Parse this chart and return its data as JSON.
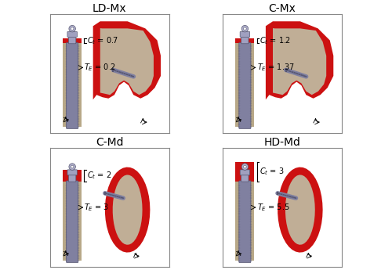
{
  "fig_width": 5.0,
  "fig_height": 3.45,
  "dpi": 100,
  "background": "#ffffff",
  "red_color": "#CC1111",
  "tan_color": "#C0AE96",
  "implant_dark": "#8080A0",
  "implant_light": "#A0A0C0",
  "implant_edge": "#555570",
  "bone_tan": "#B8A888",
  "title_fontsize": 10,
  "annot_fontsize": 7.0,
  "panels": [
    {
      "row": 0,
      "col": 0,
      "title": "LD-Mx",
      "ct": "0.7",
      "te": "0.2",
      "type": "maxilla"
    },
    {
      "row": 0,
      "col": 1,
      "title": "C-Mx",
      "ct": "1.2",
      "te": "1.37",
      "type": "maxilla"
    },
    {
      "row": 1,
      "col": 0,
      "title": "C-Md",
      "ct": "2",
      "te": "3",
      "type": "mandible"
    },
    {
      "row": 1,
      "col": 1,
      "title": "HD-Md",
      "ct": "3",
      "te": "5.5",
      "type": "mandible"
    }
  ]
}
